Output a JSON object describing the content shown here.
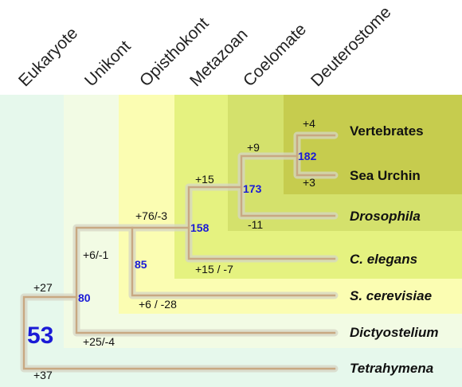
{
  "clades": [
    {
      "name": "Eukaryote",
      "color": "#e6f8ec"
    },
    {
      "name": "Unikont",
      "color": "#f2fbe4"
    },
    {
      "name": "Opisthokont",
      "color": "#fbfdb2"
    },
    {
      "name": "Metazoan",
      "color": "#e5f280"
    },
    {
      "name": "Coelomate",
      "color": "#d4e16c"
    },
    {
      "name": "Deuterostome",
      "color": "#c6cc4e"
    }
  ],
  "taxa": [
    {
      "name": "Vertebrates",
      "italic": false
    },
    {
      "name": "Sea Urchin",
      "italic": false
    },
    {
      "name": "Drosophila",
      "italic": true
    },
    {
      "name": "C. elegans",
      "italic": true
    },
    {
      "name": "S. cerevisiae",
      "italic": true
    },
    {
      "name": "Dictyostelium",
      "italic": true
    },
    {
      "name": "Tetrahymena",
      "italic": true
    }
  ],
  "nodes": {
    "root": {
      "count": "53",
      "gain_upper": "+27",
      "gain_lower": "+37"
    },
    "unikont": {
      "count": "80",
      "change_upper": "+6/-1",
      "change_lower": "+25/-4"
    },
    "opisthokont": {
      "count": "85",
      "change_upper": "+76/-3",
      "change_lower": "+6 / -28"
    },
    "metazoan": {
      "count": "158",
      "change_upper": "+15",
      "change_lower": "+15 / -7"
    },
    "coelomate": {
      "count": "173",
      "change_upper": "+9",
      "change_lower": "-11"
    },
    "deuterostome": {
      "count": "182",
      "change_upper": "+4",
      "change_lower": "+3"
    }
  },
  "colors": {
    "branch": "#c8a882",
    "branch_glow": "#d6d6c6",
    "count_text": "#1a1ad6"
  }
}
